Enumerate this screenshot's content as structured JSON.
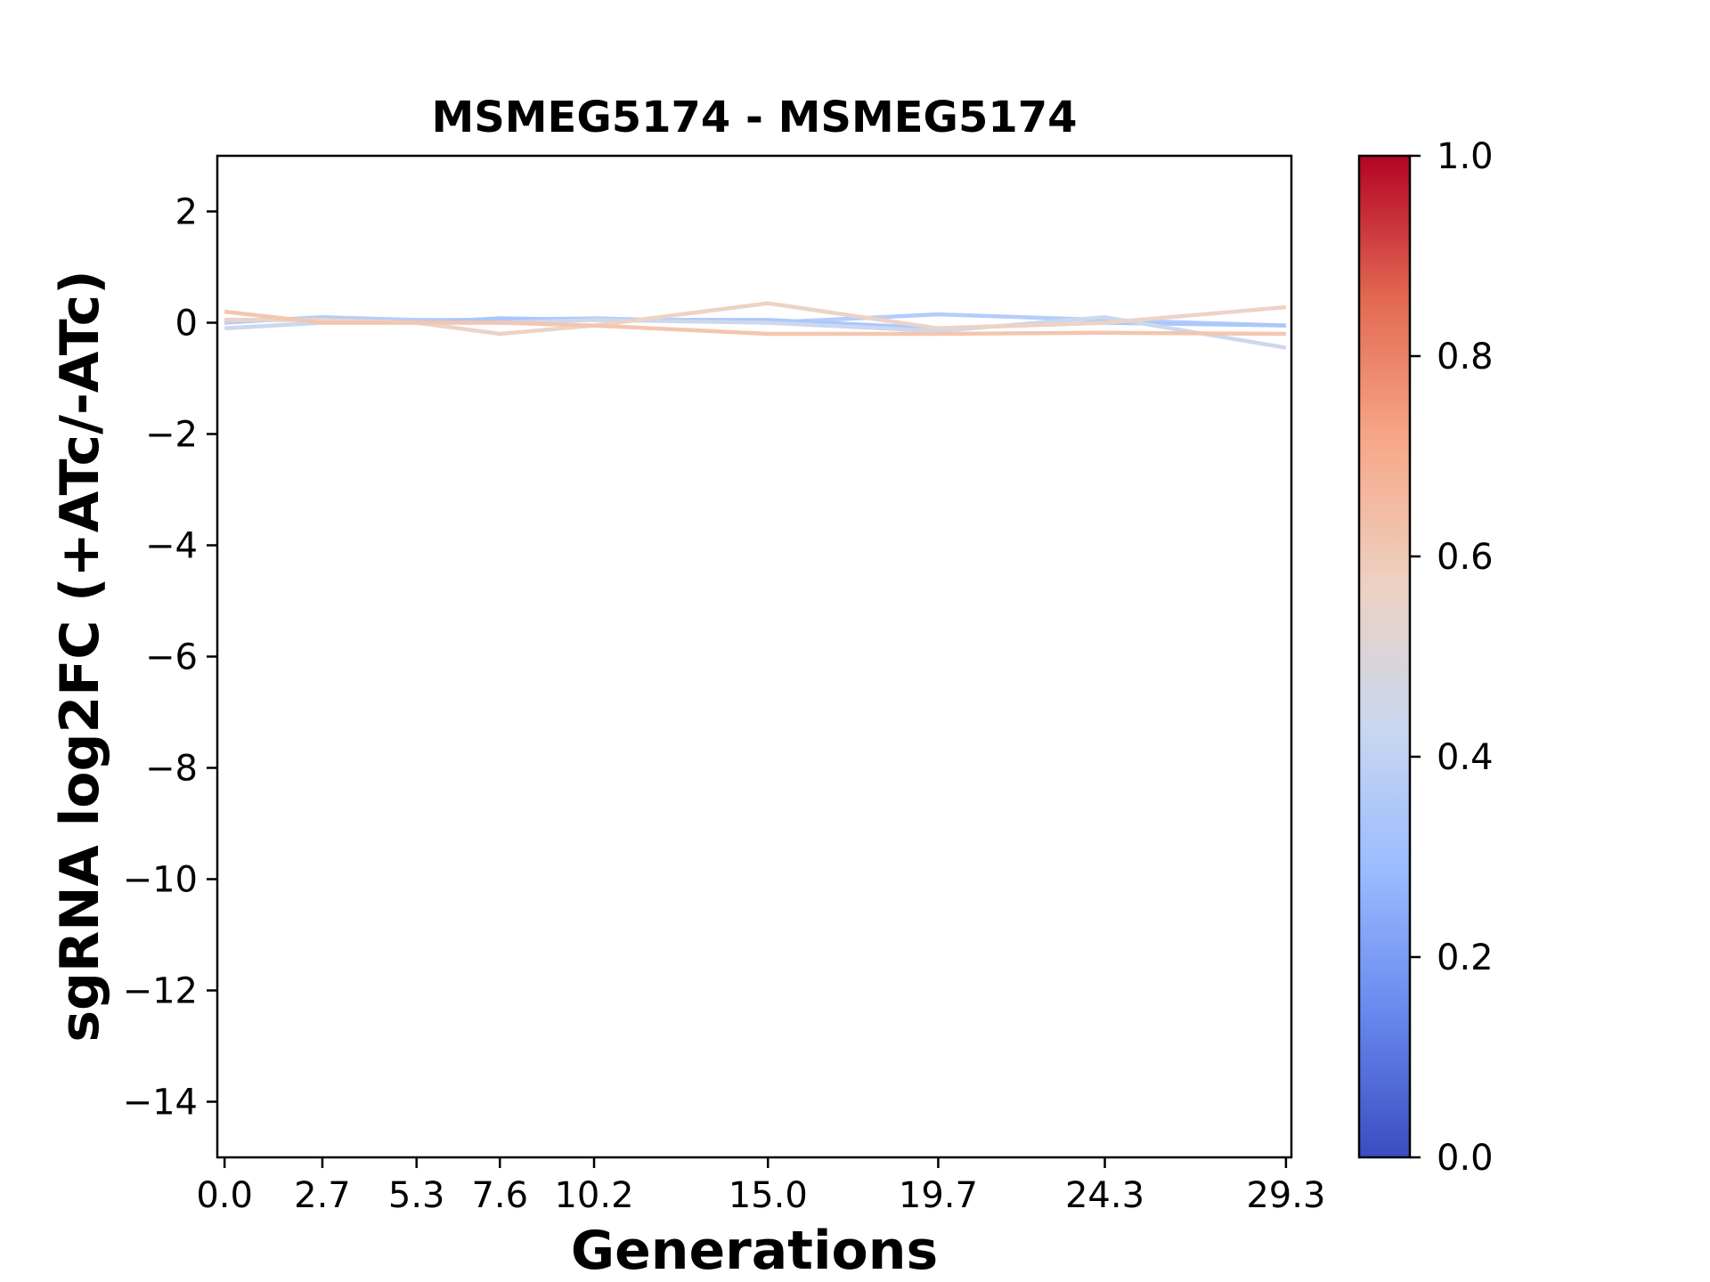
{
  "chart_data": {
    "type": "line",
    "title": "MSMEG5174 - MSMEG5174",
    "xlabel": "Generations",
    "ylabel": "sgRNA log2FC (+ATc/-ATc)",
    "x": [
      0.0,
      2.7,
      5.3,
      7.6,
      10.2,
      15.0,
      19.7,
      24.3,
      29.3
    ],
    "x_tick_labels": [
      "0.0",
      "2.7",
      "5.3",
      "7.6",
      "10.2",
      "15.0",
      "19.7",
      "24.3",
      "29.3"
    ],
    "xlim": [
      -0.2,
      29.45
    ],
    "ylim": [
      -15,
      3
    ],
    "y_ticks": [
      2,
      0,
      -2,
      -4,
      -6,
      -8,
      -10,
      -12,
      -14
    ],
    "y_tick_labels": [
      "2",
      "0",
      "−2",
      "−4",
      "−6",
      "−8",
      "−10",
      "−12",
      "−14"
    ],
    "grid": false,
    "series": [
      {
        "color": "#b5cdfa",
        "values": [
          0.0,
          0.1,
          0.05,
          0.05,
          0.08,
          0.0,
          0.15,
          0.05,
          -0.05
        ]
      },
      {
        "color": "#aac7fd",
        "values": [
          0.05,
          0.05,
          0.0,
          0.08,
          0.05,
          0.05,
          -0.1,
          0.0,
          -0.05
        ]
      },
      {
        "color": "#cbd8ee",
        "values": [
          -0.1,
          0.0,
          0.0,
          0.0,
          0.05,
          0.0,
          -0.15,
          0.1,
          -0.45
        ]
      },
      {
        "color": "#ebd3c6",
        "values": [
          0.05,
          0.05,
          0.0,
          -0.2,
          -0.05,
          0.35,
          -0.1,
          0.0,
          0.28
        ]
      },
      {
        "color": "#f4c6af",
        "values": [
          0.2,
          0.0,
          0.0,
          0.0,
          -0.05,
          -0.2,
          -0.2,
          -0.18,
          -0.2
        ]
      }
    ],
    "colorbar": {
      "colormap": "coolwarm",
      "range": [
        0.0,
        1.0
      ],
      "ticks": [
        1.0,
        0.8,
        0.6,
        0.4,
        0.2,
        0.0
      ],
      "tick_labels": [
        "1.0",
        "0.8",
        "0.6",
        "0.4",
        "0.2",
        "0.0"
      ],
      "colors": [
        "#3b4cc0",
        "#6788ee",
        "#9abbff",
        "#c9d7f0",
        "#edd1c2",
        "#f7a889",
        "#e26952",
        "#b40426"
      ]
    }
  }
}
